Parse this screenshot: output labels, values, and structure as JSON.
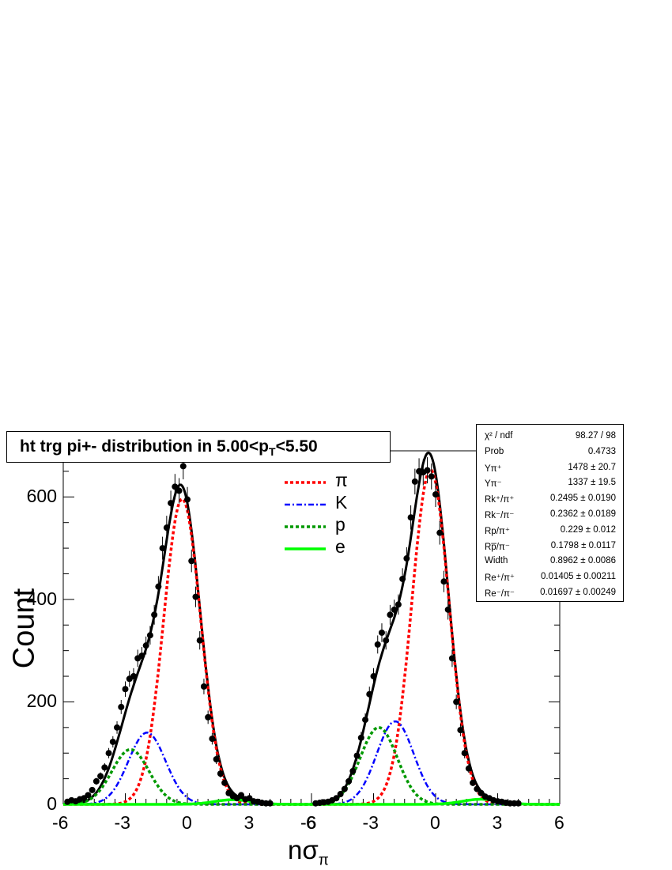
{
  "chart_data": {
    "type": "line",
    "title_main": "ht trg pi+- distribution in 5.00<p",
    "title_sub": "T",
    "title_tail": "<5.50",
    "ylabel": "Count",
    "xlabel_main": "nσ",
    "xlabel_sub": "π",
    "ylim": [
      0,
      690
    ],
    "y_ticks": [
      "0",
      "200",
      "400",
      "600"
    ],
    "panels": [
      {
        "xlim": [
          -6,
          6
        ],
        "x_ticks": [
          "-6",
          "-3",
          "0",
          "3",
          "6"
        ]
      },
      {
        "xlim": [
          -6,
          6
        ],
        "x_ticks": [
          "-6",
          "-3",
          "0",
          "3",
          "6"
        ]
      }
    ],
    "legend": [
      {
        "label": "π",
        "color": "#ff0000",
        "style": "dotted"
      },
      {
        "label": "K",
        "color": "#0000ff",
        "style": "dash-dot"
      },
      {
        "label": "p",
        "color": "#009900",
        "style": "dotted"
      },
      {
        "label": "e",
        "color": "#00ff00",
        "style": "solid"
      }
    ],
    "series": [
      {
        "name": "π",
        "components": [
          {
            "panel": 0,
            "amp": 596,
            "mean": -0.25,
            "sigma": 0.896
          },
          {
            "panel": 1,
            "amp": 653,
            "mean": -0.25,
            "sigma": 0.896
          }
        ]
      },
      {
        "name": "K",
        "components": [
          {
            "panel": 0,
            "amp": 140,
            "mean": -1.95,
            "sigma": 0.896
          },
          {
            "panel": 1,
            "amp": 162,
            "mean": -1.95,
            "sigma": 0.896
          }
        ]
      },
      {
        "name": "p",
        "components": [
          {
            "panel": 0,
            "amp": 107,
            "mean": -2.75,
            "sigma": 0.896
          },
          {
            "panel": 1,
            "amp": 150,
            "mean": -2.75,
            "sigma": 0.896
          }
        ]
      },
      {
        "name": "e",
        "components": [
          {
            "panel": 0,
            "amp": 9,
            "mean": 2.2,
            "sigma": 0.896
          },
          {
            "panel": 1,
            "amp": 10,
            "mean": 2.2,
            "sigma": 0.896
          }
        ]
      }
    ],
    "data_points": [
      {
        "panel": 0,
        "x": -5.8,
        "y": 5
      },
      {
        "panel": 0,
        "x": -5.6,
        "y": 8
      },
      {
        "panel": 0,
        "x": -5.4,
        "y": 6
      },
      {
        "panel": 0,
        "x": -5.2,
        "y": 10
      },
      {
        "panel": 0,
        "x": -5.0,
        "y": 12
      },
      {
        "panel": 0,
        "x": -4.8,
        "y": 18
      },
      {
        "panel": 0,
        "x": -4.6,
        "y": 28
      },
      {
        "panel": 0,
        "x": -4.4,
        "y": 45
      },
      {
        "panel": 0,
        "x": -4.2,
        "y": 55
      },
      {
        "panel": 0,
        "x": -4.0,
        "y": 72
      },
      {
        "panel": 0,
        "x": -3.8,
        "y": 100
      },
      {
        "panel": 0,
        "x": -3.6,
        "y": 122
      },
      {
        "panel": 0,
        "x": -3.4,
        "y": 150
      },
      {
        "panel": 0,
        "x": -3.2,
        "y": 190
      },
      {
        "panel": 0,
        "x": -3.0,
        "y": 225
      },
      {
        "panel": 0,
        "x": -2.8,
        "y": 245
      },
      {
        "panel": 0,
        "x": -2.6,
        "y": 250
      },
      {
        "panel": 0,
        "x": -2.4,
        "y": 285
      },
      {
        "panel": 0,
        "x": -2.2,
        "y": 290
      },
      {
        "panel": 0,
        "x": -2.0,
        "y": 310
      },
      {
        "panel": 0,
        "x": -1.8,
        "y": 330
      },
      {
        "panel": 0,
        "x": -1.6,
        "y": 370
      },
      {
        "panel": 0,
        "x": -1.4,
        "y": 425
      },
      {
        "panel": 0,
        "x": -1.2,
        "y": 500
      },
      {
        "panel": 0,
        "x": -1.0,
        "y": 540
      },
      {
        "panel": 0,
        "x": -0.8,
        "y": 588
      },
      {
        "panel": 0,
        "x": -0.6,
        "y": 620
      },
      {
        "panel": 0,
        "x": -0.4,
        "y": 612
      },
      {
        "panel": 0,
        "x": -0.2,
        "y": 660
      },
      {
        "panel": 0,
        "x": 0.0,
        "y": 595
      },
      {
        "panel": 0,
        "x": 0.2,
        "y": 475
      },
      {
        "panel": 0,
        "x": 0.4,
        "y": 405
      },
      {
        "panel": 0,
        "x": 0.6,
        "y": 320
      },
      {
        "panel": 0,
        "x": 0.8,
        "y": 230
      },
      {
        "panel": 0,
        "x": 1.0,
        "y": 170
      },
      {
        "panel": 0,
        "x": 1.2,
        "y": 128
      },
      {
        "panel": 0,
        "x": 1.4,
        "y": 88
      },
      {
        "panel": 0,
        "x": 1.6,
        "y": 60
      },
      {
        "panel": 0,
        "x": 1.8,
        "y": 42
      },
      {
        "panel": 0,
        "x": 2.0,
        "y": 22
      },
      {
        "panel": 0,
        "x": 2.2,
        "y": 16
      },
      {
        "panel": 0,
        "x": 2.4,
        "y": 12
      },
      {
        "panel": 0,
        "x": 2.6,
        "y": 18
      },
      {
        "panel": 0,
        "x": 2.8,
        "y": 10
      },
      {
        "panel": 0,
        "x": 3.0,
        "y": 12
      },
      {
        "panel": 0,
        "x": 3.2,
        "y": 6
      },
      {
        "panel": 0,
        "x": 3.4,
        "y": 5
      },
      {
        "panel": 0,
        "x": 3.6,
        "y": 3
      },
      {
        "panel": 0,
        "x": 3.8,
        "y": 2
      },
      {
        "panel": 0,
        "x": 4.0,
        "y": 2
      },
      {
        "panel": 1,
        "x": -5.8,
        "y": 2
      },
      {
        "panel": 1,
        "x": -5.6,
        "y": 3
      },
      {
        "panel": 1,
        "x": -5.4,
        "y": 4
      },
      {
        "panel": 1,
        "x": -5.2,
        "y": 5
      },
      {
        "panel": 1,
        "x": -5.0,
        "y": 8
      },
      {
        "panel": 1,
        "x": -4.8,
        "y": 12
      },
      {
        "panel": 1,
        "x": -4.6,
        "y": 20
      },
      {
        "panel": 1,
        "x": -4.4,
        "y": 30
      },
      {
        "panel": 1,
        "x": -4.2,
        "y": 45
      },
      {
        "panel": 1,
        "x": -4.0,
        "y": 65
      },
      {
        "panel": 1,
        "x": -3.8,
        "y": 95
      },
      {
        "panel": 1,
        "x": -3.6,
        "y": 130
      },
      {
        "panel": 1,
        "x": -3.4,
        "y": 165
      },
      {
        "panel": 1,
        "x": -3.2,
        "y": 215
      },
      {
        "panel": 1,
        "x": -3.0,
        "y": 250
      },
      {
        "panel": 1,
        "x": -2.8,
        "y": 312
      },
      {
        "panel": 1,
        "x": -2.6,
        "y": 335
      },
      {
        "panel": 1,
        "x": -2.4,
        "y": 320
      },
      {
        "panel": 1,
        "x": -2.2,
        "y": 370
      },
      {
        "panel": 1,
        "x": -2.0,
        "y": 380
      },
      {
        "panel": 1,
        "x": -1.8,
        "y": 390
      },
      {
        "panel": 1,
        "x": -1.6,
        "y": 440
      },
      {
        "panel": 1,
        "x": -1.4,
        "y": 480
      },
      {
        "panel": 1,
        "x": -1.2,
        "y": 560
      },
      {
        "panel": 1,
        "x": -1.0,
        "y": 630
      },
      {
        "panel": 1,
        "x": -0.8,
        "y": 650
      },
      {
        "panel": 1,
        "x": -0.6,
        "y": 648
      },
      {
        "panel": 1,
        "x": -0.4,
        "y": 652
      },
      {
        "panel": 1,
        "x": -0.2,
        "y": 640
      },
      {
        "panel": 1,
        "x": 0.0,
        "y": 605
      },
      {
        "panel": 1,
        "x": 0.2,
        "y": 530
      },
      {
        "panel": 1,
        "x": 0.4,
        "y": 435
      },
      {
        "panel": 1,
        "x": 0.6,
        "y": 380
      },
      {
        "panel": 1,
        "x": 0.8,
        "y": 285
      },
      {
        "panel": 1,
        "x": 1.0,
        "y": 200
      },
      {
        "panel": 1,
        "x": 1.2,
        "y": 145
      },
      {
        "panel": 1,
        "x": 1.4,
        "y": 100
      },
      {
        "panel": 1,
        "x": 1.6,
        "y": 70
      },
      {
        "panel": 1,
        "x": 1.8,
        "y": 42
      },
      {
        "panel": 1,
        "x": 2.0,
        "y": 30
      },
      {
        "panel": 1,
        "x": 2.2,
        "y": 22
      },
      {
        "panel": 1,
        "x": 2.4,
        "y": 15
      },
      {
        "panel": 1,
        "x": 2.6,
        "y": 12
      },
      {
        "panel": 1,
        "x": 2.8,
        "y": 8
      },
      {
        "panel": 1,
        "x": 3.0,
        "y": 6
      },
      {
        "panel": 1,
        "x": 3.2,
        "y": 5
      },
      {
        "panel": 1,
        "x": 3.4,
        "y": 3
      },
      {
        "panel": 1,
        "x": 3.6,
        "y": 2
      },
      {
        "panel": 1,
        "x": 3.8,
        "y": 2
      },
      {
        "panel": 1,
        "x": 4.0,
        "y": 2
      }
    ],
    "stats": [
      {
        "name": "χ² / ndf",
        "value": "98.27 / 98"
      },
      {
        "name": "Prob",
        "value": "0.4733"
      },
      {
        "name": "Yπ⁺",
        "value": "1478 ± 20.7"
      },
      {
        "name": "Yπ⁻",
        "value": "1337 ± 19.5"
      },
      {
        "name": "Rk⁺/π⁺",
        "value": "0.2495 ± 0.0190"
      },
      {
        "name": "Rk⁻/π⁻",
        "value": "0.2362 ± 0.0189"
      },
      {
        "name": "Rp/π⁺",
        "value": "0.229 ± 0.012"
      },
      {
        "name": "Rp̅/π⁻",
        "value": "0.1798 ± 0.0117"
      },
      {
        "name": "Width",
        "value": "0.8962 ± 0.0086"
      },
      {
        "name": "Re⁺/π⁺",
        "value": "0.01405 ± 0.00211"
      },
      {
        "name": "Re⁻/π⁻",
        "value": "0.01697 ± 0.00249"
      }
    ]
  }
}
